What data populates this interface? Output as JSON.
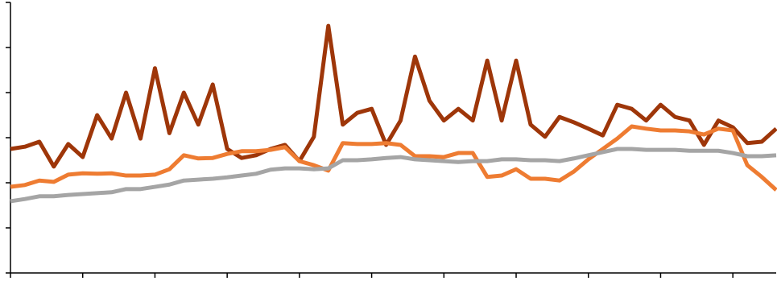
{
  "chart_data": {
    "type": "line",
    "x": [
      0,
      0.2,
      0.4,
      0.6,
      0.8,
      1,
      1.2,
      1.4,
      1.6,
      1.8,
      2,
      2.2,
      2.4,
      2.6,
      2.8,
      3,
      3.2,
      3.4,
      3.6,
      3.8,
      4,
      4.2,
      4.4,
      4.6,
      4.8,
      5,
      5.2,
      5.4,
      5.6,
      5.8,
      6,
      6.2,
      6.4,
      6.6,
      6.8,
      7,
      7.2,
      7.4,
      7.6,
      7.8,
      8,
      8.2,
      8.4,
      8.6,
      8.8,
      9,
      9.2,
      9.4,
      9.6,
      9.8,
      10,
      10.2,
      10.4,
      10.6
    ],
    "series": [
      {
        "color": "#9e3609",
        "values": [
          2.75,
          2.8,
          2.91,
          2.36,
          2.86,
          2.57,
          3.5,
          2.98,
          4.0,
          2.98,
          4.54,
          3.1,
          4.0,
          3.29,
          4.18,
          2.75,
          2.55,
          2.61,
          2.75,
          2.84,
          2.48,
          3.02,
          5.48,
          3.29,
          3.55,
          3.64,
          2.84,
          3.38,
          4.8,
          3.82,
          3.38,
          3.64,
          3.38,
          4.71,
          3.38,
          4.71,
          3.29,
          3.02,
          3.46,
          3.34,
          3.2,
          3.05,
          3.73,
          3.64,
          3.38,
          3.73,
          3.46,
          3.38,
          2.84,
          3.38,
          3.23,
          2.88,
          2.91,
          3.2
        ]
      },
      {
        "color": "#ee7c32",
        "values": [
          1.91,
          1.95,
          2.05,
          2.02,
          2.18,
          2.21,
          2.2,
          2.21,
          2.16,
          2.16,
          2.18,
          2.3,
          2.61,
          2.54,
          2.55,
          2.64,
          2.7,
          2.7,
          2.73,
          2.79,
          2.48,
          2.39,
          2.27,
          2.88,
          2.86,
          2.86,
          2.88,
          2.84,
          2.59,
          2.59,
          2.57,
          2.66,
          2.66,
          2.13,
          2.16,
          2.3,
          2.09,
          2.09,
          2.05,
          2.25,
          2.52,
          2.75,
          2.98,
          3.25,
          3.2,
          3.16,
          3.16,
          3.14,
          3.07,
          3.2,
          3.16,
          2.39,
          2.13,
          1.84
        ]
      },
      {
        "color": "#a5a5a5",
        "values": [
          1.59,
          1.64,
          1.7,
          1.7,
          1.73,
          1.75,
          1.77,
          1.79,
          1.86,
          1.86,
          1.91,
          1.96,
          2.05,
          2.07,
          2.09,
          2.12,
          2.16,
          2.2,
          2.29,
          2.32,
          2.32,
          2.3,
          2.32,
          2.5,
          2.5,
          2.52,
          2.55,
          2.57,
          2.52,
          2.5,
          2.48,
          2.46,
          2.48,
          2.48,
          2.52,
          2.52,
          2.5,
          2.5,
          2.48,
          2.54,
          2.61,
          2.68,
          2.75,
          2.75,
          2.73,
          2.73,
          2.73,
          2.71,
          2.71,
          2.71,
          2.66,
          2.59,
          2.59,
          2.61
        ]
      }
    ],
    "xlim": [
      0,
      10.6
    ],
    "ylim": [
      0,
      6
    ],
    "xticks": [
      0,
      1,
      2,
      3,
      4,
      5,
      6,
      7,
      8,
      9,
      10
    ],
    "yticks": [
      0,
      1,
      2,
      3,
      4,
      5,
      6
    ]
  }
}
